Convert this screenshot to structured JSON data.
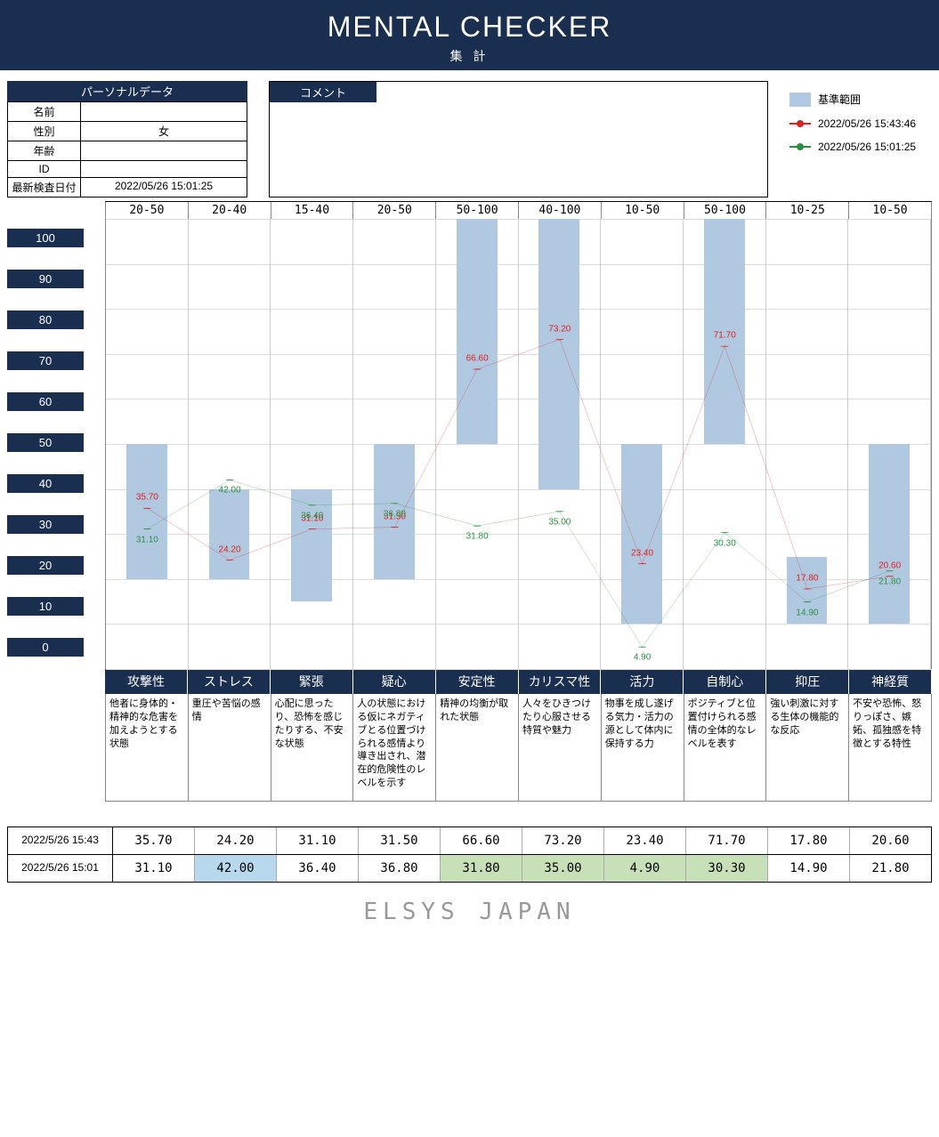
{
  "header": {
    "title": "MENTAL CHECKER",
    "subtitle": "集 計"
  },
  "personal": {
    "header": "パーソナルデータ",
    "rows": [
      {
        "label": "名前",
        "value": ""
      },
      {
        "label": "性別",
        "value": "女"
      },
      {
        "label": "年齢",
        "value": ""
      },
      {
        "label": "ID",
        "value": ""
      },
      {
        "label": "最新検査日付",
        "value": "2022/05/26 15:01:25"
      }
    ]
  },
  "comment": {
    "header": "コメント",
    "text": ""
  },
  "legend": {
    "ref": {
      "label": "基準範囲",
      "color": "#b0c8e0"
    },
    "series1": {
      "label": "2022/05/26 15:43:46",
      "color": "#e02020"
    },
    "series2": {
      "label": "2022/05/26 15:01:25",
      "color": "#2a9040"
    }
  },
  "chart": {
    "ylim": [
      0,
      100
    ],
    "ytick_step": 10,
    "background": "#ffffff",
    "grid_color": "#dddddd",
    "ref_color": "#b0c8e0",
    "categories": [
      {
        "name": "攻撃性",
        "range": "20-50",
        "ref_lo": 20,
        "ref_hi": 50,
        "desc": "他者に身体的・精神的な危害を加えようとする状態"
      },
      {
        "name": "ストレス",
        "range": "20-40",
        "ref_lo": 20,
        "ref_hi": 40,
        "desc": "重圧や苦悩の感情"
      },
      {
        "name": "緊張",
        "range": "15-40",
        "ref_lo": 15,
        "ref_hi": 40,
        "desc": "心配に思ったり、恐怖を感じたりする、不安な状態"
      },
      {
        "name": "疑心",
        "range": "20-50",
        "ref_lo": 20,
        "ref_hi": 50,
        "desc": "人の状態における仮にネガティブとる位置づけられる感情より導き出され、潜在的危険性のレベルを示す"
      },
      {
        "name": "安定性",
        "range": "50-100",
        "ref_lo": 50,
        "ref_hi": 100,
        "desc": "精神の均衡が取れた状態"
      },
      {
        "name": "カリスマ性",
        "range": "40-100",
        "ref_lo": 40,
        "ref_hi": 100,
        "desc": "人々をひきつけたり心服させる特質や魅力"
      },
      {
        "name": "活力",
        "range": "10-50",
        "ref_lo": 10,
        "ref_hi": 50,
        "desc": "物事を成し遂げる気力・活力の源として体内に保持する力"
      },
      {
        "name": "自制心",
        "range": "50-100",
        "ref_lo": 50,
        "ref_hi": 100,
        "desc": "ポジティブと位置付けられる感情の全体的なレベルを表す"
      },
      {
        "name": "抑圧",
        "range": "10-25",
        "ref_lo": 10,
        "ref_hi": 25,
        "desc": "強い刺激に対する生体の機能的な反応"
      },
      {
        "name": "神経質",
        "range": "10-50",
        "ref_lo": 10,
        "ref_hi": 50,
        "desc": "不安や恐怖、怒りっぽさ、嫉妬、孤独感を特徴とする特性"
      }
    ],
    "series": [
      {
        "key": "s1",
        "label": "2022/5/26 15:43",
        "color": "#e02020",
        "values": [
          35.7,
          24.2,
          31.1,
          31.5,
          66.6,
          73.2,
          23.4,
          71.7,
          17.8,
          20.6
        ]
      },
      {
        "key": "s2",
        "label": "2022/5/26 15:01",
        "color": "#2a9040",
        "values": [
          31.1,
          42.0,
          36.4,
          36.8,
          31.8,
          35.0,
          4.9,
          30.3,
          14.9,
          21.8
        ]
      }
    ]
  },
  "table": {
    "rows": [
      {
        "label": "2022/5/26 15:43",
        "cells": [
          {
            "v": "35.70",
            "bg": ""
          },
          {
            "v": "24.20",
            "bg": ""
          },
          {
            "v": "31.10",
            "bg": ""
          },
          {
            "v": "31.50",
            "bg": ""
          },
          {
            "v": "66.60",
            "bg": ""
          },
          {
            "v": "73.20",
            "bg": ""
          },
          {
            "v": "23.40",
            "bg": ""
          },
          {
            "v": "71.70",
            "bg": ""
          },
          {
            "v": "17.80",
            "bg": ""
          },
          {
            "v": "20.60",
            "bg": ""
          }
        ]
      },
      {
        "label": "2022/5/26 15:01",
        "cells": [
          {
            "v": "31.10",
            "bg": ""
          },
          {
            "v": "42.00",
            "bg": "#b8d8ee"
          },
          {
            "v": "36.40",
            "bg": ""
          },
          {
            "v": "36.80",
            "bg": ""
          },
          {
            "v": "31.80",
            "bg": "#c8e0b8"
          },
          {
            "v": "35.00",
            "bg": "#c8e0b8"
          },
          {
            "v": "4.90",
            "bg": "#c8e0b8"
          },
          {
            "v": "30.30",
            "bg": "#c8e0b8"
          },
          {
            "v": "14.90",
            "bg": ""
          },
          {
            "v": "21.80",
            "bg": ""
          }
        ]
      }
    ]
  },
  "footer": "ELSYS JAPAN"
}
